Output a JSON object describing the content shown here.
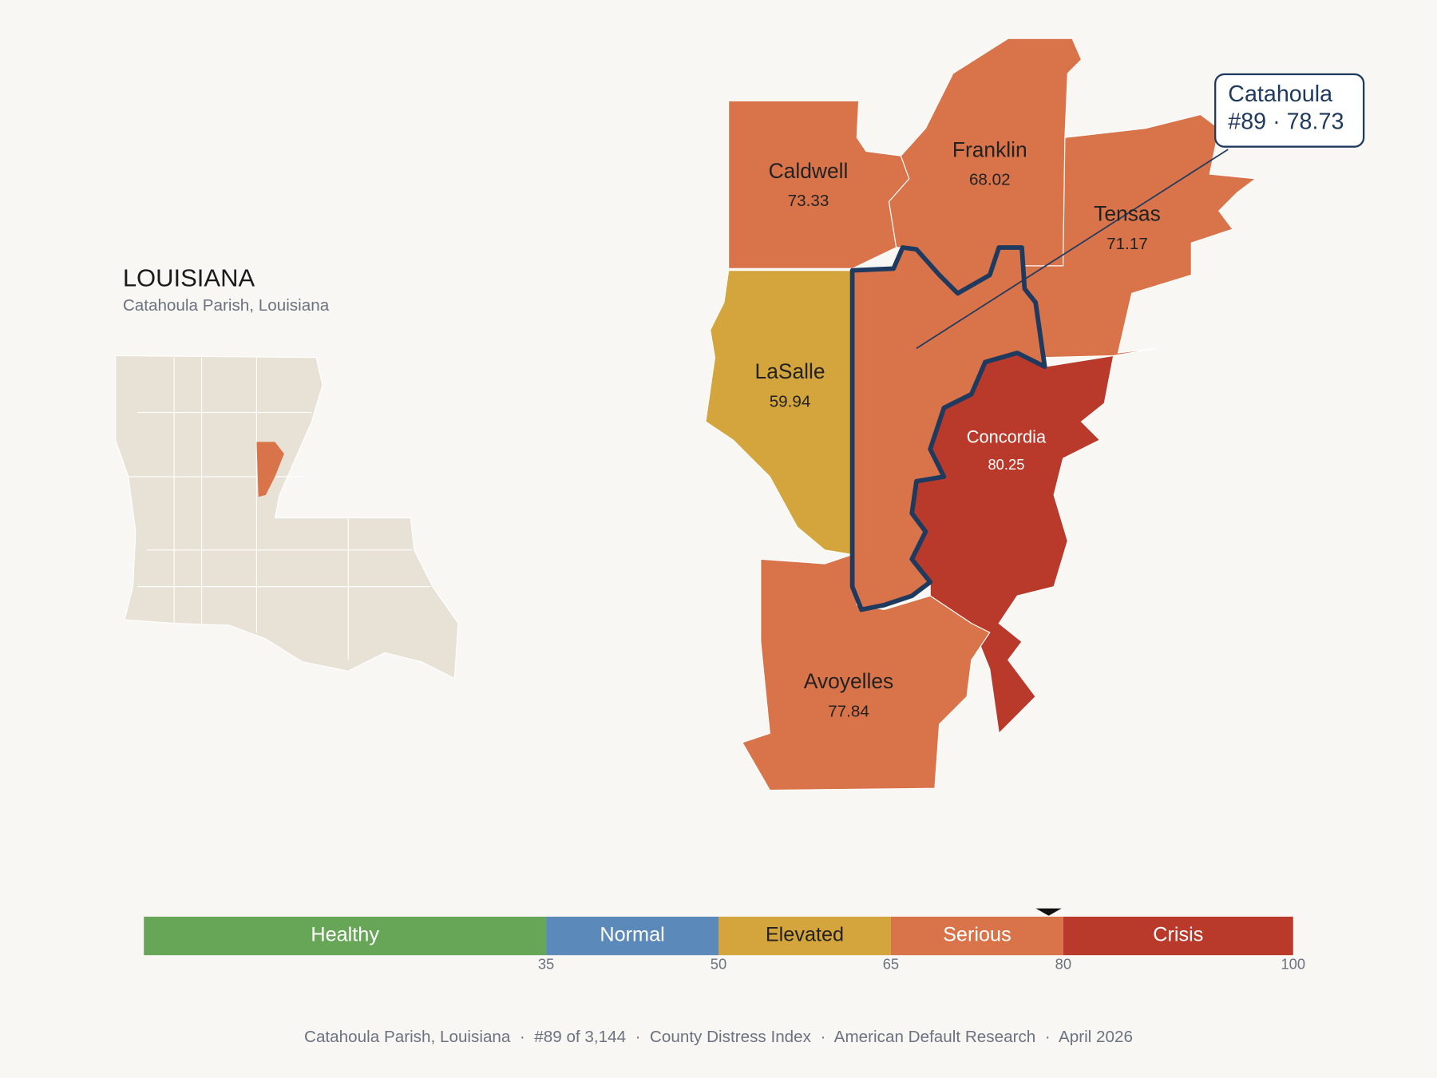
{
  "header": {
    "title": "LOUISIANA",
    "subtitle": "Catahoula Parish, Louisiana"
  },
  "map": {
    "parishes": [
      {
        "name": "Caldwell",
        "value": 73.33,
        "color": "#d9744a"
      },
      {
        "name": "Franklin",
        "value": 68.02,
        "color": "#d9744a"
      },
      {
        "name": "Tensas",
        "value": 71.17,
        "color": "#d9744a"
      },
      {
        "name": "LaSalle",
        "value": 59.94,
        "color": "#d4a53c"
      },
      {
        "name": "Concordia",
        "value": 80.25,
        "color": "#b93a2b"
      },
      {
        "name": "Avoyelles",
        "value": 77.84,
        "color": "#d9744a"
      }
    ],
    "focus": {
      "name": "Catahoula",
      "label": "#89 · 78.73",
      "color": "#d9744a",
      "outline": "#1f3a5f"
    }
  },
  "scale": {
    "lim": [
      0,
      100
    ],
    "ticks": [
      35,
      50,
      65,
      80,
      100
    ],
    "bands": [
      {
        "label": "Healthy",
        "color": "#67a657"
      },
      {
        "label": "Normal",
        "color": "#5b8aba"
      },
      {
        "label": "Elevated",
        "color": "#d4a53c"
      },
      {
        "label": "Serious",
        "color": "#d9744a"
      },
      {
        "label": "Crisis",
        "color": "#b93a2b"
      }
    ],
    "marker": 78.73
  },
  "footer": "Catahoula Parish, Louisiana  ·  #89 of 3,144  ·  County Distress Index  ·  American Default Research  ·  April 2026"
}
